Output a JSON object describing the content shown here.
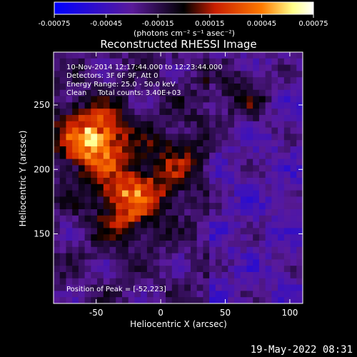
{
  "chart_data": {
    "type": "heatmap",
    "title": "Reconstructed RHESSI Image",
    "xlabel": "Heliocentric X (arcsec)",
    "ylabel": "Heliocentric Y (arcsec)",
    "xlim": [
      -83,
      110
    ],
    "ylim": [
      96,
      291
    ],
    "x_ticks": [
      -50,
      0,
      50,
      100
    ],
    "y_ticks": [
      150,
      200,
      250
    ],
    "colorbar": {
      "range": [
        -0.00075,
        0.00075
      ],
      "ticks": [
        "-0.00075",
        "-0.00045",
        "-0.00015",
        "0.00015",
        "0.00045",
        "0.00075"
      ],
      "units": "(photons cm⁻² s⁻¹ asec⁻²)",
      "colormap": [
        "#0000ff",
        "#5a1a9a",
        "#000000",
        "#c81e00",
        "#ff7a00",
        "#ffff8a",
        "#ffffff"
      ]
    },
    "annotations": [
      "10-Nov-2014 12:17:44.000 to 12:23:44.000",
      "Detectors: 3F 6F 9F, Att 0",
      "Energy Range: 25.0 - 50.0 keV",
      "Clean     Total counts: 3.40E+03"
    ],
    "peak_label": "Position of Peak = [-52,223]",
    "peak_position": [
      -52,
      223
    ],
    "sources": [
      {
        "x": -52,
        "y": 223,
        "peak": 0.00075
      },
      {
        "x": -25,
        "y": 175,
        "peak": 0.00055
      },
      {
        "x": 10,
        "y": 205,
        "peak": 0.0003
      },
      {
        "x": 60,
        "y": 258,
        "peak": 0.00028
      }
    ]
  },
  "footer": {
    "timestamp": "19-May-2022 08:31"
  }
}
